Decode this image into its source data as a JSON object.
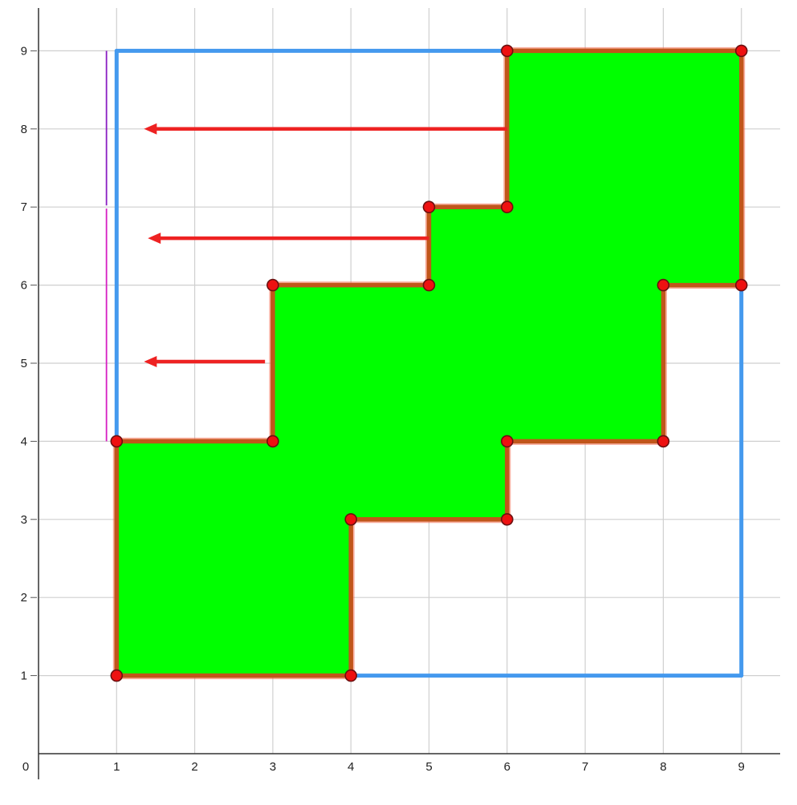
{
  "axes": {
    "origin_label": "0",
    "x_ticks": [
      "1",
      "2",
      "3",
      "4",
      "5",
      "6",
      "7",
      "8",
      "9"
    ],
    "y_ticks": [
      "1",
      "2",
      "3",
      "4",
      "5",
      "6",
      "7",
      "8",
      "9"
    ]
  },
  "shape": {
    "vertices": [
      [
        1,
        1
      ],
      [
        4,
        1
      ],
      [
        4,
        3
      ],
      [
        6,
        3
      ],
      [
        6,
        4
      ],
      [
        8,
        4
      ],
      [
        8,
        6
      ],
      [
        9,
        6
      ],
      [
        9,
        9
      ],
      [
        6,
        9
      ],
      [
        6,
        7
      ],
      [
        5,
        7
      ],
      [
        5,
        6
      ],
      [
        3,
        6
      ],
      [
        3,
        4
      ],
      [
        1,
        4
      ]
    ],
    "fill_color": "#00ff00",
    "edge_color": "#c0561a",
    "vertex_color": "#ee1111"
  },
  "bounding_lines": {
    "color": "#4499ee",
    "segments": [
      [
        [
          1,
          4
        ],
        [
          1,
          9
        ]
      ],
      [
        [
          1,
          9
        ],
        [
          6,
          9
        ]
      ],
      [
        [
          4,
          1
        ],
        [
          9,
          1
        ]
      ],
      [
        [
          9,
          1
        ],
        [
          9,
          6
        ]
      ]
    ]
  },
  "arrows": {
    "color": "#ee2222",
    "items": [
      {
        "from": [
          6,
          8
        ],
        "to": [
          1.35,
          8
        ]
      },
      {
        "from": [
          5,
          6.6
        ],
        "to": [
          1.4,
          6.6
        ]
      },
      {
        "from": [
          2.9,
          5.02
        ],
        "to": [
          1.35,
          5.02
        ]
      }
    ]
  },
  "side_marks": [
    {
      "x": 0.87,
      "y_from": 7.02,
      "y_to": 9,
      "color": "#8a1ec2"
    },
    {
      "x": 0.87,
      "y_from": 4,
      "y_to": 6.98,
      "color": "#d61ec2"
    }
  ]
}
